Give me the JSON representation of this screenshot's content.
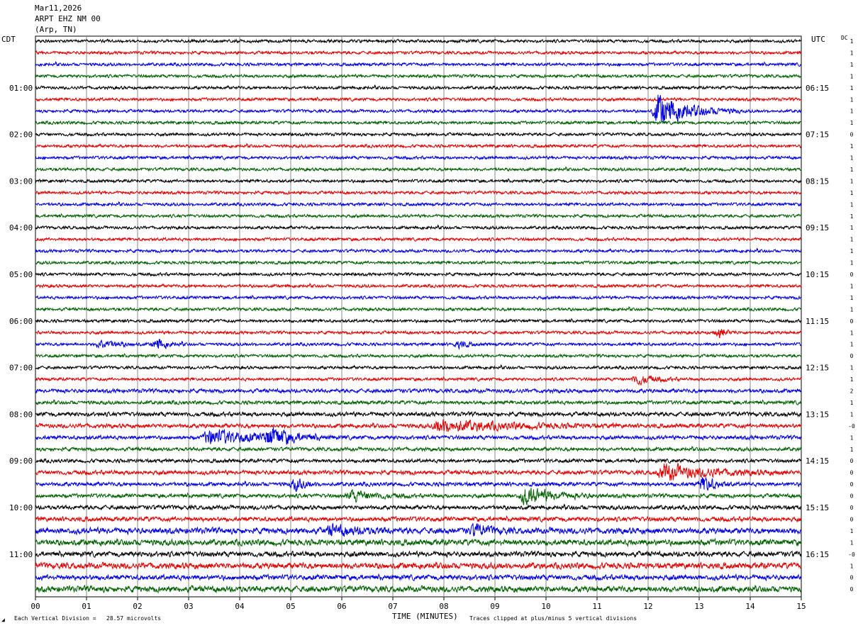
{
  "header": {
    "date": "Mar11,2026",
    "station": "ARPT EHZ NM 00",
    "location": "(Arp, TN)"
  },
  "left_tz": "CDT",
  "right_tz": "UTC",
  "dc_label": "DC",
  "footer": {
    "scale_text": "Each Vertical Division =   28.57 microvolts",
    "xlabel": "TIME (MINUTES)",
    "clip_text": "Traces clipped at plus/minus 5 vertical divisions"
  },
  "colors": {
    "cycle": [
      "#000000",
      "#e00000",
      "#0000e0",
      "#006000"
    ],
    "grid": "#888888"
  },
  "chart_data": {
    "type": "line",
    "xlabel": "TIME (MINUTES)",
    "xlim": [
      0,
      15
    ],
    "x_ticks": [
      "00",
      "01",
      "02",
      "03",
      "04",
      "05",
      "06",
      "07",
      "08",
      "09",
      "10",
      "11",
      "12",
      "13",
      "14",
      "15"
    ],
    "trace_minutes": 15,
    "trace_count": 48,
    "left_hour_labels": [
      "01:00",
      "02:00",
      "03:00",
      "04:00",
      "05:00",
      "06:00",
      "07:00",
      "08:00",
      "09:00",
      "10:00",
      "11:00"
    ],
    "left_label_every": 4,
    "left_label_first_trace": 4,
    "right_hour_labels": [
      "06:15",
      "07:15",
      "08:15",
      "09:15",
      "10:15",
      "11:15",
      "12:15",
      "13:15",
      "14:15",
      "15:15",
      "16:15"
    ],
    "dc_offsets": [
      "1",
      "1",
      "1",
      "1",
      "1",
      "1",
      "1",
      "1",
      "0",
      "1",
      "1",
      "1",
      "1",
      "1",
      "1",
      "1",
      "1",
      "1",
      "1",
      "1",
      "0",
      "1",
      "1",
      "1",
      "0",
      "1",
      "1",
      "0",
      "1",
      "1",
      "2",
      "1",
      "1",
      "-0",
      "1",
      "1",
      "0",
      "0",
      "0",
      "0",
      "0",
      "0",
      "1",
      "1",
      "-0",
      "1",
      "0",
      "0"
    ],
    "noise_levels": [
      1,
      1,
      1,
      1,
      1,
      1,
      1,
      1,
      1,
      1,
      1,
      1,
      1,
      1,
      1,
      1,
      1,
      1,
      1,
      1,
      1,
      1,
      1,
      1,
      1,
      1,
      1,
      1,
      1,
      1,
      1.3,
      1.2,
      1.4,
      1.4,
      1.3,
      1.2,
      1.2,
      1.4,
      1.3,
      1.3,
      1.4,
      1.5,
      2,
      2,
      1.7,
      2,
      1.7,
      2
    ],
    "events": [
      {
        "trace": 6,
        "minute": 12.2,
        "duration": 1.6,
        "amp": 4.5
      },
      {
        "trace": 29,
        "minute": 11.8,
        "duration": 0.9,
        "amp": 1.3
      },
      {
        "trace": 33,
        "minute": 7.9,
        "duration": 3.5,
        "amp": 1.6
      },
      {
        "trace": 34,
        "minute": 3.4,
        "duration": 2.5,
        "amp": 2.0
      },
      {
        "trace": 34,
        "minute": 4.6,
        "duration": 1.0,
        "amp": 2.5
      },
      {
        "trace": 37,
        "minute": 12.3,
        "duration": 2.5,
        "amp": 2.0
      },
      {
        "trace": 38,
        "minute": 5.1,
        "duration": 0.5,
        "amp": 1.5
      },
      {
        "trace": 38,
        "minute": 13.1,
        "duration": 0.6,
        "amp": 2.3
      },
      {
        "trace": 39,
        "minute": 9.6,
        "duration": 1.5,
        "amp": 2.2
      },
      {
        "trace": 39,
        "minute": 6.2,
        "duration": 1.2,
        "amp": 1.3
      },
      {
        "trace": 26,
        "minute": 2.4,
        "duration": 0.5,
        "amp": 1.5
      },
      {
        "trace": 26,
        "minute": 1.3,
        "duration": 0.8,
        "amp": 1.2
      },
      {
        "trace": 26,
        "minute": 8.3,
        "duration": 0.4,
        "amp": 1.0
      },
      {
        "trace": 25,
        "minute": 13.4,
        "duration": 0.4,
        "amp": 1.3
      },
      {
        "trace": 42,
        "minute": 8.6,
        "duration": 0.8,
        "amp": 1.4
      },
      {
        "trace": 42,
        "minute": 5.8,
        "duration": 1.5,
        "amp": 1.2
      }
    ]
  }
}
